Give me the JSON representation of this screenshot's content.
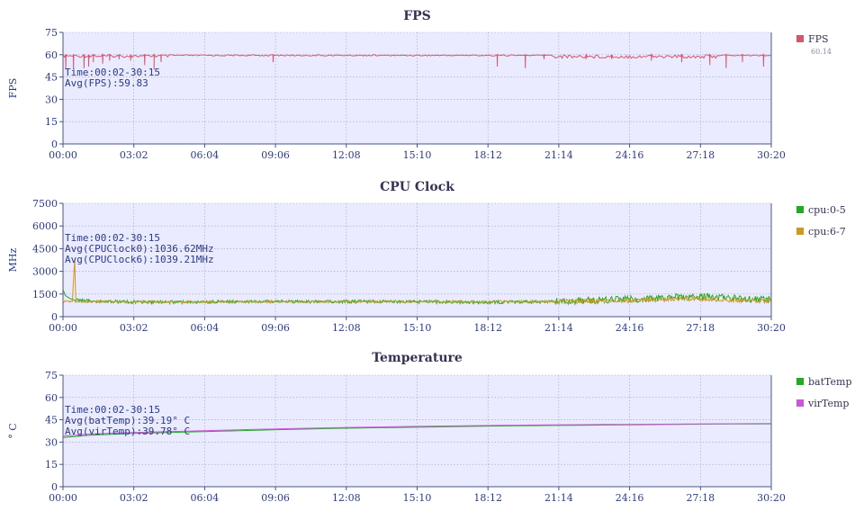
{
  "chart_data": [
    {
      "type": "line",
      "title": "FPS",
      "ylabel": "FPS",
      "ylim": [
        0,
        75
      ],
      "yticks": [
        0,
        15,
        30,
        45,
        60,
        75
      ],
      "xlim": [
        "00:00",
        "30:20"
      ],
      "xticks": [
        "00:00",
        "03:02",
        "06:04",
        "09:06",
        "12:08",
        "15:10",
        "18:12",
        "21:14",
        "24:16",
        "27:18",
        "30:20"
      ],
      "annotations": [
        "Time:00:02-30:15",
        "Avg(FPS):59.83"
      ],
      "series": [
        {
          "name": "FPS",
          "legend_value": "60.14",
          "color": "#d9546a",
          "baseline": 60,
          "dips": [
            [
              0.12,
              50
            ],
            [
              0.45,
              50
            ],
            [
              0.9,
              51
            ],
            [
              1.1,
              52
            ],
            [
              1.3,
              55
            ],
            [
              1.7,
              54
            ],
            [
              2.0,
              56
            ],
            [
              2.4,
              57
            ],
            [
              2.9,
              56
            ],
            [
              3.5,
              53
            ],
            [
              3.9,
              50
            ],
            [
              4.2,
              55
            ],
            [
              9.0,
              55
            ],
            [
              18.6,
              52
            ],
            [
              19.8,
              51
            ],
            [
              20.6,
              57
            ],
            [
              22.4,
              57
            ],
            [
              23.5,
              57
            ],
            [
              25.2,
              56
            ],
            [
              26.5,
              55
            ],
            [
              27.7,
              53
            ],
            [
              28.4,
              51
            ],
            [
              29.1,
              55
            ],
            [
              30.0,
              52
            ]
          ]
        }
      ]
    },
    {
      "type": "line",
      "title": "CPU Clock",
      "ylabel": "MHz",
      "ylim": [
        0,
        7500
      ],
      "yticks": [
        0,
        1500,
        3000,
        4500,
        6000,
        7500
      ],
      "xlim": [
        "00:00",
        "30:20"
      ],
      "xticks": [
        "00:00",
        "03:02",
        "06:04",
        "09:06",
        "12:08",
        "15:10",
        "18:12",
        "21:14",
        "24:16",
        "27:18",
        "30:20"
      ],
      "annotations": [
        "Time:00:02-30:15",
        "Avg(CPUClock0):1036.62MHz",
        "Avg(CPUClock6):1039.21MHz"
      ],
      "series": [
        {
          "name": "cpu:0-5",
          "color": "#22aa22",
          "points": [
            [
              0.0,
              1800
            ],
            [
              0.1,
              1400
            ],
            [
              0.3,
              1200
            ],
            [
              0.5,
              1100
            ],
            [
              1.0,
              1050
            ],
            [
              2.0,
              1000
            ],
            [
              4.0,
              950
            ],
            [
              6.0,
              980
            ],
            [
              8.0,
              1000
            ],
            [
              11.0,
              1000
            ],
            [
              12.0,
              1000
            ],
            [
              15.0,
              1000
            ],
            [
              18.0,
              950
            ],
            [
              20.0,
              980
            ],
            [
              21.0,
              1000
            ],
            [
              22.0,
              1050
            ],
            [
              23.0,
              1100
            ],
            [
              24.0,
              1150
            ],
            [
              25.0,
              1200
            ],
            [
              26.0,
              1300
            ],
            [
              27.0,
              1350
            ],
            [
              28.0,
              1300
            ],
            [
              29.0,
              1200
            ],
            [
              30.33,
              1100
            ]
          ]
        },
        {
          "name": "cpu:6-7",
          "color": "#cc9922",
          "points": [
            [
              0.0,
              1000
            ],
            [
              0.4,
              1000
            ],
            [
              0.5,
              3800
            ],
            [
              0.55,
              1000
            ],
            [
              2.0,
              1000
            ],
            [
              6.0,
              980
            ],
            [
              12.0,
              1000
            ],
            [
              18.0,
              1000
            ],
            [
              21.0,
              1000
            ],
            [
              24.0,
              1050
            ],
            [
              25.0,
              1100
            ],
            [
              26.0,
              1150
            ],
            [
              27.0,
              1200
            ],
            [
              28.0,
              1150
            ],
            [
              29.0,
              1100
            ],
            [
              30.33,
              1050
            ]
          ]
        }
      ]
    },
    {
      "type": "line",
      "title": "Temperature",
      "ylabel": "° C",
      "ylim": [
        0,
        75
      ],
      "yticks": [
        0,
        15,
        30,
        45,
        60,
        75
      ],
      "xlim": [
        "00:00",
        "30:20"
      ],
      "xticks": [
        "00:00",
        "03:02",
        "06:04",
        "09:06",
        "12:08",
        "15:10",
        "18:12",
        "21:14",
        "24:16",
        "27:18",
        "30:20"
      ],
      "annotations": [
        "Time:00:02-30:15",
        "Avg(batTemp):39.19° C",
        "Avg(virTemp):39.78° C"
      ],
      "series": [
        {
          "name": "batTemp",
          "color": "#22aa22",
          "points": [
            [
              0.0,
              33
            ],
            [
              1.0,
              34.5
            ],
            [
              3.0,
              35.8
            ],
            [
              6.0,
              37
            ],
            [
              9.0,
              38.3
            ],
            [
              12.0,
              39.3
            ],
            [
              15.0,
              40
            ],
            [
              18.0,
              40.7
            ],
            [
              21.0,
              41.2
            ],
            [
              24.0,
              41.6
            ],
            [
              27.0,
              42
            ],
            [
              30.33,
              42.3
            ]
          ]
        },
        {
          "name": "virTemp",
          "color": "#cc55dd",
          "points": [
            [
              0.0,
              34
            ],
            [
              1.0,
              35.3
            ],
            [
              3.0,
              36.5
            ],
            [
              6.0,
              37.6
            ],
            [
              9.0,
              38.8
            ],
            [
              12.0,
              39.8
            ],
            [
              15.0,
              40.5
            ],
            [
              18.0,
              41.1
            ],
            [
              21.0,
              41.6
            ],
            [
              24.0,
              41.9
            ],
            [
              27.0,
              42.2
            ],
            [
              30.33,
              42.5
            ]
          ]
        }
      ]
    }
  ]
}
